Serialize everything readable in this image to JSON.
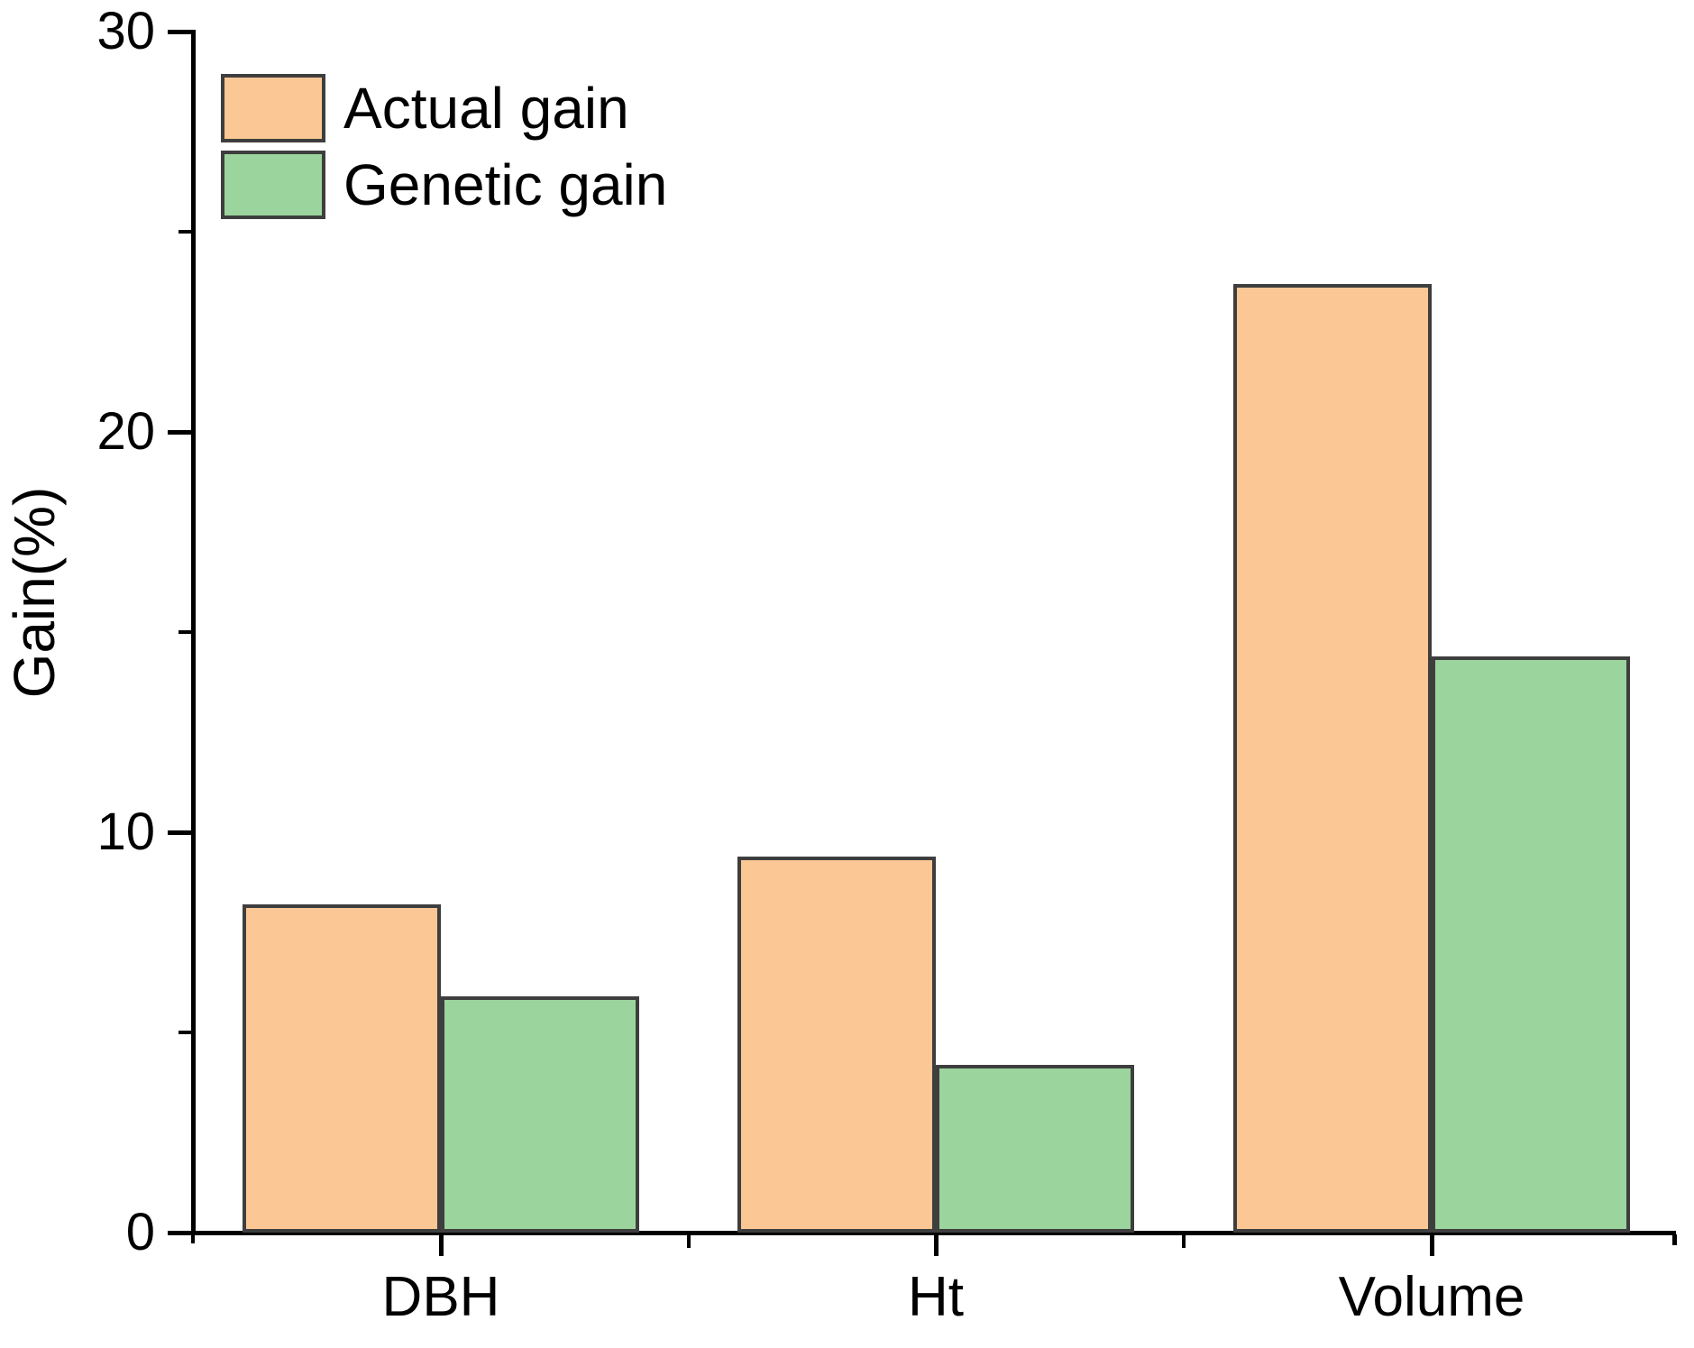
{
  "chart_data": {
    "type": "bar",
    "title": "",
    "categories": [
      "DBH",
      "Ht",
      "Volume"
    ],
    "series": [
      {
        "name": "Actual gain",
        "color": "#FBC795",
        "values": [
          8.2,
          9.4,
          23.7
        ]
      },
      {
        "name": "Genetic gain",
        "color": "#9BD49D",
        "values": [
          5.9,
          4.2,
          14.4
        ]
      }
    ],
    "xlabel": "",
    "ylabel": "Gain(%)",
    "ylim": [
      0,
      30
    ],
    "y_major_ticks": [
      0,
      10,
      20,
      30
    ],
    "y_minor_ticks": [
      5,
      15,
      25
    ],
    "grid": false,
    "legend_position": "top-left",
    "bar_border_color": "#3E3E3E",
    "axis_color": "#000000",
    "plot_background": "#FFFFFF"
  }
}
